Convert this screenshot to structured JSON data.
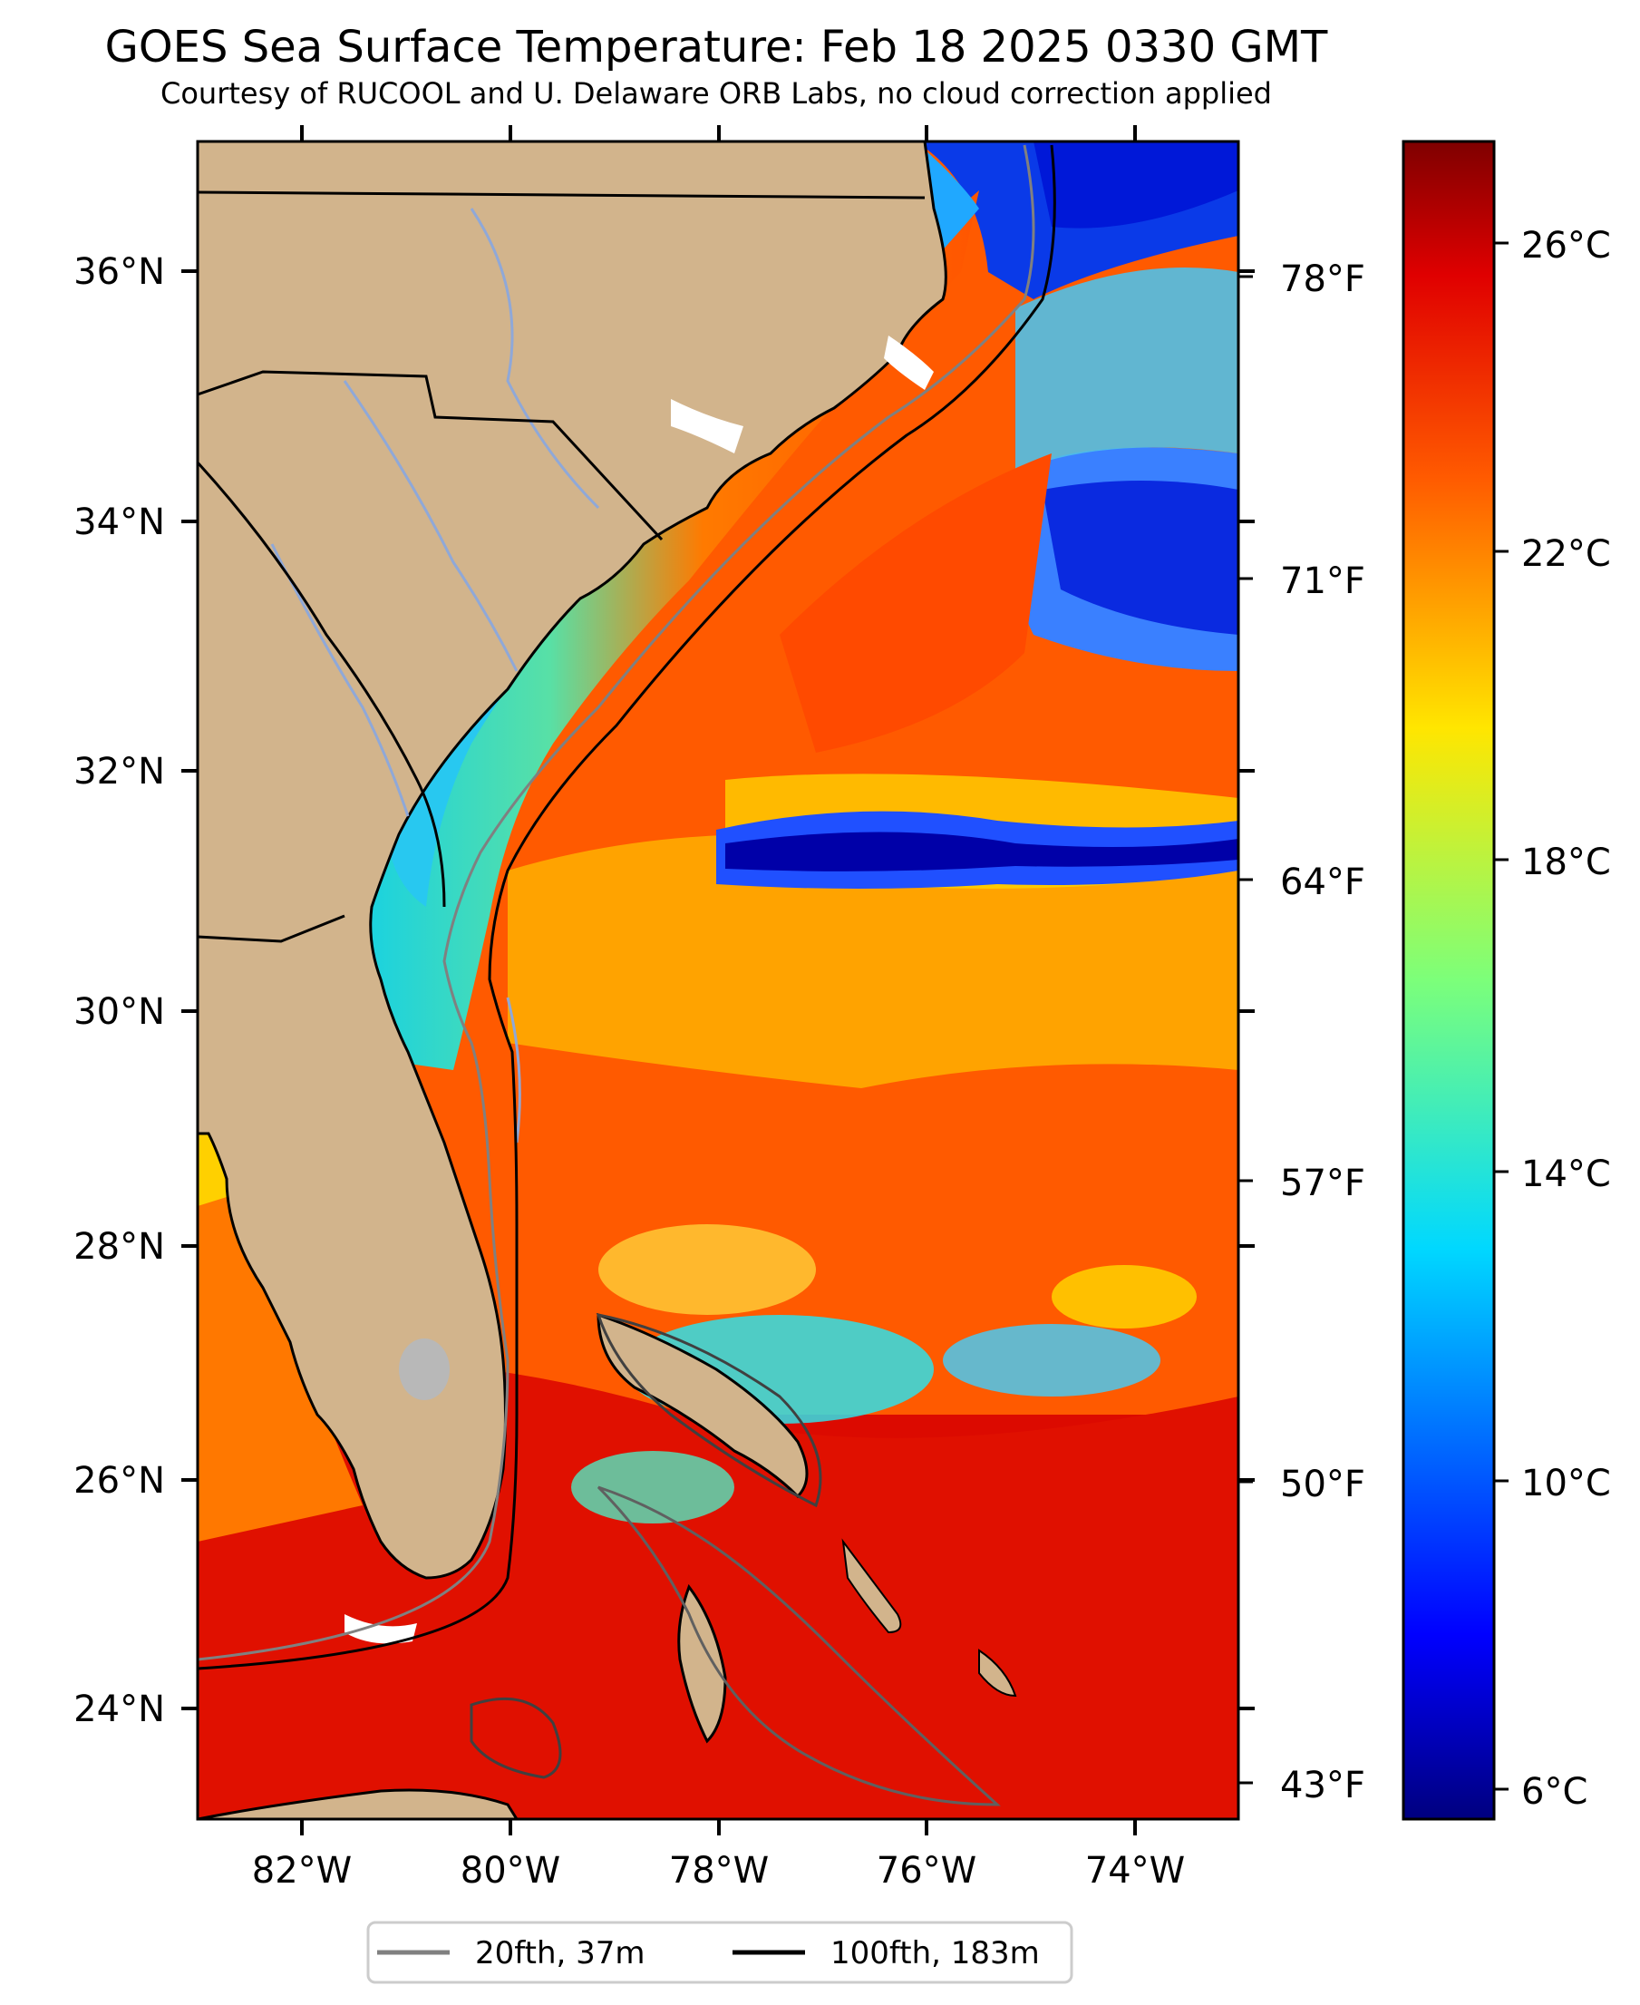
{
  "title": "GOES Sea Surface Temperature: Feb 18 2025 0330 GMT",
  "subtitle": "Courtesy of RUCOOL and U. Delaware ORB Labs, no cloud correction applied",
  "map": {
    "lat_labels": [
      "36°N",
      "34°N",
      "32°N",
      "30°N",
      "28°N",
      "26°N",
      "24°N"
    ],
    "lon_labels": [
      "82°W",
      "80°W",
      "78°W",
      "76°W",
      "74°W"
    ],
    "f_labels": [
      "78°F",
      "71°F",
      "64°F",
      "57°F",
      "50°F",
      "43°F"
    ],
    "colors": {
      "land": "#d2b48c",
      "river": "#8fa8d8",
      "border": "#000000",
      "cloud_mask": "#ffffff"
    }
  },
  "colorbar": {
    "labels": [
      "26°C",
      "22°C",
      "18°C",
      "14°C",
      "10°C",
      "6°C"
    ],
    "colormap": "jet"
  },
  "legend": {
    "items": [
      {
        "label": "20fth, 37m",
        "color": "#808080"
      },
      {
        "label": "100fth, 183m",
        "color": "#000000"
      }
    ]
  }
}
